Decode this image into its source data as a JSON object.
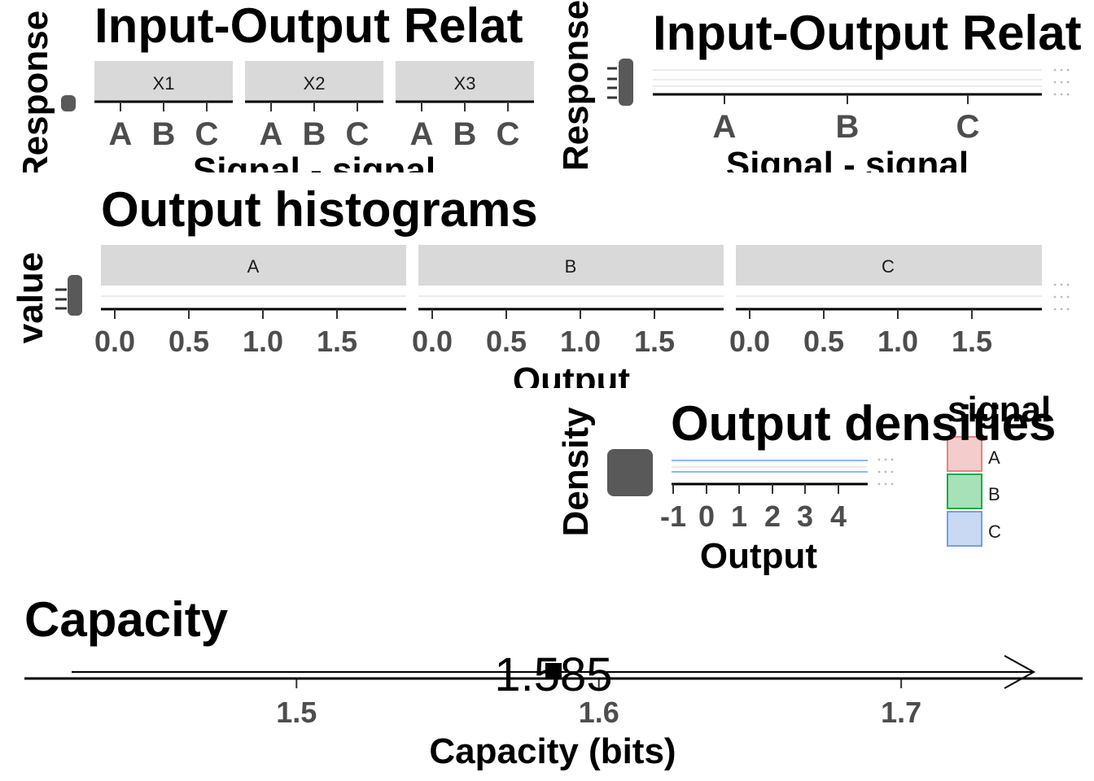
{
  "chart_data": [
    {
      "id": "io_facet",
      "type": "scatter",
      "title": "Input-Output Relat",
      "xlabel": "Signal - signal",
      "ylabel": "Response",
      "facets": [
        "X1",
        "X2",
        "X3"
      ],
      "categories": [
        "A",
        "B",
        "C"
      ]
    },
    {
      "id": "io_single",
      "type": "line",
      "title": "Input-Output Relat",
      "xlabel": "Signal - signal",
      "ylabel": "Response",
      "categories": [
        "A",
        "B",
        "C"
      ]
    },
    {
      "id": "hist",
      "type": "bar",
      "title": "Output histograms",
      "xlabel": "Output",
      "ylabel": "value",
      "facets": [
        "A",
        "B",
        "C"
      ],
      "x_ticks": [
        "0.0",
        "0.5",
        "1.0",
        "1.5"
      ]
    },
    {
      "id": "density",
      "type": "area",
      "title": "Output densities",
      "xlabel": "Output",
      "ylabel": "Density",
      "x_ticks": [
        "-1",
        "0",
        "1",
        "2",
        "3",
        "4"
      ],
      "legend": {
        "title": "signal",
        "position": "right",
        "entries": [
          {
            "label": "A",
            "fill": "#f4cccc",
            "stroke": "#e8837c"
          },
          {
            "label": "B",
            "fill": "#a6e1b8",
            "stroke": "#22a84a"
          },
          {
            "label": "C",
            "fill": "#c9d8f3",
            "stroke": "#6f9ff0"
          }
        ]
      }
    },
    {
      "id": "capacity",
      "type": "scatter",
      "title": "Capacity",
      "xlabel": "Capacity (bits)",
      "x_ticks": [
        "1.5",
        "1.6",
        "1.7"
      ],
      "xlim": [
        1.41,
        1.76
      ],
      "point": {
        "x": 1.585,
        "label": "1.585"
      }
    }
  ]
}
